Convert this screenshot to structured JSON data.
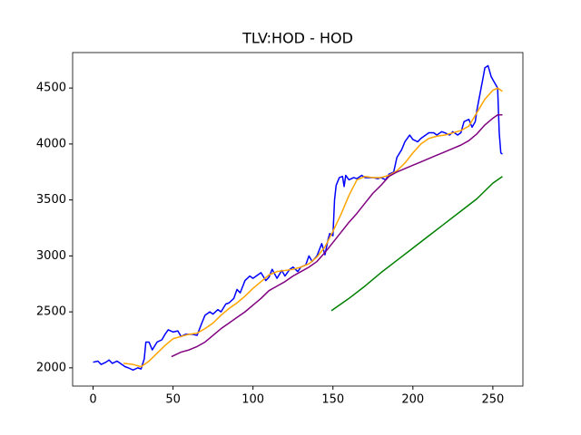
{
  "chart_data": {
    "type": "line",
    "title": "TLV:HOD - HOD",
    "xlim": [
      -12.8,
      268.8
    ],
    "ylim": [
      1837,
      4817
    ],
    "xticks": [
      0,
      50,
      100,
      150,
      200,
      250
    ],
    "yticks": [
      2000,
      2500,
      3000,
      3500,
      4000,
      4500
    ],
    "series": [
      {
        "color": "#0000ff",
        "x": [
          0,
          3,
          5,
          8,
          10,
          12,
          15,
          18,
          20,
          22,
          25,
          28,
          30,
          32,
          33,
          35,
          37,
          40,
          43,
          45,
          47,
          50,
          53,
          55,
          58,
          62,
          65,
          68,
          70,
          73,
          75,
          78,
          80,
          83,
          85,
          88,
          90,
          92,
          95,
          98,
          100,
          103,
          105,
          108,
          110,
          112,
          115,
          118,
          120,
          123,
          125,
          128,
          130,
          133,
          135,
          137,
          140,
          143,
          145,
          147,
          148,
          150,
          151,
          152,
          154,
          156,
          157,
          158,
          160,
          163,
          165,
          168,
          170,
          173,
          175,
          178,
          180,
          183,
          185,
          188,
          190,
          193,
          195,
          198,
          200,
          203,
          205,
          208,
          210,
          213,
          215,
          218,
          220,
          223,
          225,
          228,
          230,
          232,
          235,
          237,
          239,
          240,
          242,
          244,
          245,
          247,
          249,
          251,
          253,
          254,
          255,
          256
        ],
        "values": [
          2050,
          2060,
          2030,
          2050,
          2070,
          2040,
          2060,
          2030,
          2010,
          2000,
          1980,
          2000,
          1990,
          2080,
          2230,
          2230,
          2160,
          2230,
          2250,
          2300,
          2340,
          2320,
          2330,
          2280,
          2300,
          2300,
          2290,
          2400,
          2470,
          2500,
          2480,
          2520,
          2500,
          2570,
          2580,
          2620,
          2700,
          2670,
          2780,
          2820,
          2800,
          2830,
          2850,
          2780,
          2810,
          2880,
          2800,
          2870,
          2820,
          2880,
          2900,
          2860,
          2900,
          2920,
          3000,
          2950,
          3000,
          3110,
          3010,
          3150,
          3200,
          3180,
          3500,
          3630,
          3700,
          3710,
          3620,
          3720,
          3680,
          3700,
          3690,
          3720,
          3700,
          3700,
          3700,
          3690,
          3700,
          3680,
          3730,
          3750,
          3880,
          3950,
          4020,
          4080,
          4040,
          4020,
          4050,
          4080,
          4100,
          4100,
          4080,
          4110,
          4100,
          4080,
          4110,
          4080,
          4100,
          4200,
          4220,
          4150,
          4200,
          4300,
          4450,
          4600,
          4680,
          4700,
          4600,
          4550,
          4500,
          4100,
          3920,
          3910
        ]
      },
      {
        "color": "#ffa500",
        "x": [
          19,
          25,
          30,
          35,
          40,
          45,
          50,
          55,
          60,
          65,
          70,
          75,
          80,
          85,
          90,
          95,
          100,
          105,
          110,
          115,
          120,
          125,
          130,
          135,
          140,
          145,
          150,
          155,
          160,
          165,
          170,
          175,
          180,
          185,
          190,
          195,
          200,
          205,
          210,
          215,
          220,
          225,
          230,
          235,
          240,
          245,
          250,
          253,
          256
        ],
        "values": [
          2040,
          2030,
          2010,
          2060,
          2130,
          2200,
          2260,
          2280,
          2300,
          2310,
          2350,
          2400,
          2470,
          2530,
          2580,
          2640,
          2710,
          2770,
          2830,
          2860,
          2870,
          2880,
          2900,
          2930,
          2990,
          3080,
          3220,
          3370,
          3540,
          3680,
          3710,
          3700,
          3700,
          3720,
          3760,
          3830,
          3920,
          4000,
          4050,
          4070,
          4080,
          4100,
          4120,
          4160,
          4280,
          4400,
          4480,
          4500,
          4470
        ]
      },
      {
        "color": "#800080",
        "x": [
          49,
          55,
          60,
          65,
          70,
          75,
          80,
          85,
          90,
          95,
          100,
          105,
          110,
          115,
          120,
          125,
          130,
          135,
          140,
          145,
          150,
          155,
          160,
          165,
          170,
          175,
          180,
          185,
          190,
          195,
          200,
          205,
          210,
          215,
          220,
          225,
          230,
          235,
          240,
          245,
          250,
          253,
          256
        ],
        "values": [
          2100,
          2140,
          2160,
          2190,
          2230,
          2290,
          2350,
          2400,
          2450,
          2500,
          2560,
          2620,
          2690,
          2730,
          2770,
          2820,
          2860,
          2900,
          2950,
          3030,
          3120,
          3210,
          3300,
          3380,
          3470,
          3560,
          3630,
          3710,
          3750,
          3780,
          3810,
          3840,
          3870,
          3900,
          3930,
          3960,
          3990,
          4030,
          4090,
          4170,
          4230,
          4260,
          4260
        ]
      },
      {
        "color": "#008000",
        "x": [
          149,
          160,
          170,
          180,
          190,
          200,
          210,
          220,
          230,
          240,
          250,
          256
        ],
        "values": [
          2510,
          2620,
          2730,
          2850,
          2960,
          3070,
          3180,
          3290,
          3400,
          3510,
          3650,
          3710
        ]
      }
    ]
  }
}
